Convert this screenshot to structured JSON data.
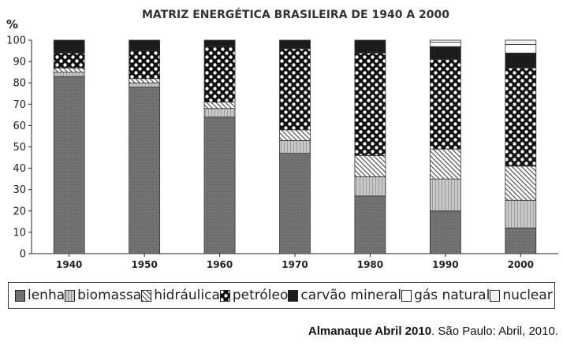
{
  "chart_data": {
    "type": "bar",
    "stacked": true,
    "title": "MATRIZ ENERGÉTICA BRASILEIRA DE 1940 A 2000",
    "ylabel": "%",
    "xlabel": "",
    "ylim": [
      0,
      100
    ],
    "yticks": [
      0,
      10,
      20,
      30,
      40,
      50,
      60,
      70,
      80,
      90,
      100
    ],
    "categories": [
      "1940",
      "1950",
      "1960",
      "1970",
      "1980",
      "1990",
      "2000"
    ],
    "legend_position": "bottom",
    "series": [
      {
        "name": "lenha",
        "values": [
          83,
          78,
          64,
          47,
          27,
          20,
          12
        ],
        "pattern": "dark-gray"
      },
      {
        "name": "biomassa",
        "values": [
          2,
          2,
          4,
          6,
          9,
          15,
          13
        ],
        "pattern": "light-gray-vertical"
      },
      {
        "name": "hidráulica",
        "values": [
          2,
          2,
          3,
          5,
          10,
          14,
          16
        ],
        "pattern": "diagonal-hatch"
      },
      {
        "name": "petróleo",
        "values": [
          7,
          13,
          26,
          38,
          48,
          42,
          46
        ],
        "pattern": "checker"
      },
      {
        "name": "carvão mineral",
        "values": [
          6,
          5,
          3,
          4,
          6,
          6,
          7
        ],
        "pattern": "black"
      },
      {
        "name": "gás natural",
        "values": [
          0,
          0,
          0,
          0,
          0,
          2,
          4
        ],
        "pattern": "white"
      },
      {
        "name": "nuclear",
        "values": [
          0,
          0,
          0,
          0,
          0,
          1,
          2
        ],
        "pattern": "white-small"
      }
    ]
  },
  "source": {
    "bold": "Almanaque Abril 2010",
    "rest": ". São Paulo: Abril, 2010."
  }
}
